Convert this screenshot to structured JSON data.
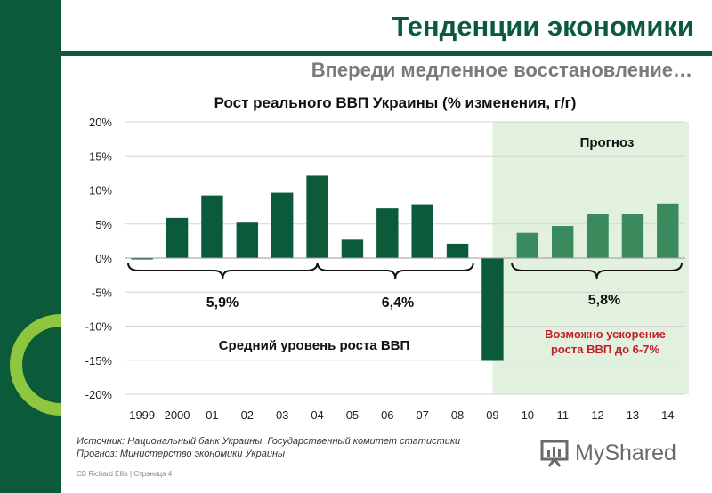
{
  "header": {
    "title": "Тенденции экономики",
    "subtitle": "Впереди медленное восстановление…"
  },
  "chart_data": {
    "type": "bar",
    "title": "Рост реального ВВП Украины (% изменения, г/г)",
    "categories": [
      "1999",
      "2000",
      "01",
      "02",
      "03",
      "04",
      "05",
      "06",
      "07",
      "08",
      "09",
      "10",
      "11",
      "12",
      "13",
      "14"
    ],
    "values": [
      -0.2,
      5.9,
      9.2,
      5.2,
      9.6,
      12.1,
      2.7,
      7.3,
      7.9,
      2.1,
      -15.1,
      3.7,
      4.7,
      6.5,
      6.5,
      8.0
    ],
    "forecast_from_index": 11,
    "ylim": [
      -20,
      20
    ],
    "yticks": [
      20,
      15,
      10,
      5,
      0,
      -5,
      -10,
      -15,
      -20
    ],
    "ytick_labels": [
      "20%",
      "15%",
      "10%",
      "5%",
      "0%",
      "-5%",
      "-10%",
      "-15%",
      "-20%"
    ],
    "grid": true,
    "colors": {
      "actual": "#0b5a3a",
      "forecast": "#3a8a5e",
      "forecast_region": "#e2f1dd",
      "highlight_text": "#c0202a"
    },
    "annotations": {
      "forecast_label": "Прогноз",
      "avg_1": "5,9%",
      "avg_2": "6,4%",
      "avg_3": "5,8%",
      "avg_caption": "Средний уровень роста ВВП",
      "acceleration_line1": "Возможно ускорение",
      "acceleration_line2": "роста ВВП до 6-7%"
    }
  },
  "footer": {
    "source_line1": "Источник: Национальный банк Украины, Государственный комитет статистики",
    "source_line2": "Прогноз: Министерство экономики Украины",
    "small": "CB Richard Ellis  |  Страница 4",
    "logo_text": "MyShared"
  }
}
